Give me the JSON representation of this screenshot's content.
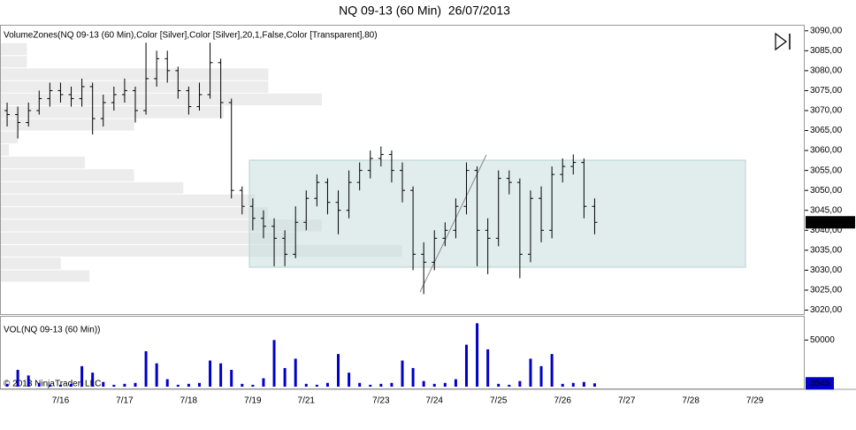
{
  "chart_data": {
    "type": "ohlc",
    "title": "NQ 09-13 (60 Min)  26/07/2013",
    "indicator_label": "VolumeZones(NQ 09-13 (60 Min),Color [Silver],Color [Silver],20,1,False,Color [Transparent],80)",
    "copyright": "© 2013 NinjaTrader, LLC",
    "categories": [
      null,
      null,
      null,
      null,
      null,
      "7/16",
      null,
      null,
      null,
      null,
      null,
      "7/17",
      null,
      null,
      null,
      null,
      null,
      "7/18",
      null,
      null,
      null,
      null,
      null,
      "7/19",
      null,
      null,
      null,
      null,
      "7/21",
      null,
      null,
      null,
      null,
      null,
      null,
      "7/23",
      null,
      null,
      null,
      null,
      "7/24",
      null,
      null,
      null,
      null,
      null,
      "7/25",
      null,
      null,
      null,
      null,
      null,
      "7/26",
      null,
      null,
      null,
      null,
      null,
      "7/27",
      null,
      null,
      null,
      null,
      null,
      "7/28",
      null,
      null,
      null,
      null,
      null,
      "7/29",
      null,
      null,
      null,
      null
    ],
    "open": [
      3070,
      3069,
      3067,
      3070,
      3073,
      3075,
      3074,
      3073,
      3076,
      3068,
      3072,
      3074,
      3075,
      3070,
      3078,
      3083,
      3080,
      3075,
      3071,
      3074,
      3082,
      3072,
      3050,
      3046,
      3043,
      3041,
      3038,
      3034,
      3042,
      3048,
      3052,
      3047,
      3045,
      3052,
      3055,
      3058,
      3059,
      3055,
      3050,
      3034,
      3032,
      3038,
      3040,
      3046,
      3055,
      3040,
      3038,
      3053,
      3052,
      3034,
      3048,
      3040,
      3054,
      3056,
      3057,
      3046,
      null,
      null,
      null,
      null,
      null,
      null,
      null,
      null,
      null,
      null,
      null,
      null,
      null,
      null,
      null,
      null,
      null,
      null,
      null
    ],
    "high": [
      3072,
      3071,
      3072,
      3075,
      3077,
      3077,
      3076,
      3078,
      3077,
      3074,
      3076,
      3078,
      3076,
      3087,
      3085,
      3085,
      3081,
      3076,
      3077,
      3087,
      3083,
      3073,
      3051,
      3048,
      3045,
      3043,
      3040,
      3046,
      3050,
      3054,
      3053,
      3050,
      3055,
      3057,
      3060,
      3061,
      3060,
      3057,
      3051,
      3037,
      3040,
      3042,
      3048,
      3057,
      3056,
      3043,
      3055,
      3055,
      3053,
      3050,
      3051,
      3056,
      3058,
      3059,
      3058,
      3048,
      null,
      null,
      null,
      null,
      null,
      null,
      null,
      null,
      null,
      null,
      null,
      null,
      null,
      null,
      null,
      null,
      null,
      null,
      null
    ],
    "low": [
      3066,
      3063,
      3066,
      3069,
      3071,
      3072,
      3071,
      3071,
      3064,
      3066,
      3070,
      3072,
      3067,
      3069,
      3076,
      3077,
      3073,
      3069,
      3070,
      3073,
      3068,
      3048,
      3044,
      3040,
      3038,
      3031,
      3031,
      3033,
      3040,
      3046,
      3044,
      3039,
      3043,
      3050,
      3053,
      3056,
      3052,
      3047,
      3030,
      3024,
      3030,
      3036,
      3038,
      3044,
      3031,
      3029,
      3036,
      3049,
      3028,
      3032,
      3037,
      3038,
      3052,
      3054,
      3043,
      3039,
      null,
      null,
      null,
      null,
      null,
      null,
      null,
      null,
      null,
      null,
      null,
      null,
      null,
      null,
      null,
      null,
      null,
      null,
      null
    ],
    "close": [
      3069,
      3067,
      3070,
      3073,
      3075,
      3074,
      3073,
      3076,
      3068,
      3072,
      3074,
      3075,
      3070,
      3078,
      3083,
      3080,
      3075,
      3071,
      3074,
      3082,
      3072,
      3050,
      3046,
      3043,
      3041,
      3038,
      3034,
      3042,
      3048,
      3052,
      3047,
      3045,
      3052,
      3055,
      3058,
      3059,
      3055,
      3050,
      3034,
      3032,
      3038,
      3040,
      3046,
      3055,
      3040,
      3038,
      3053,
      3052,
      3034,
      3048,
      3040,
      3054,
      3056,
      3057,
      3046,
      3042,
      null,
      null,
      null,
      null,
      null,
      null,
      null,
      null,
      null,
      null,
      null,
      null,
      null,
      null,
      null,
      null,
      null,
      null,
      null
    ],
    "close_label": "3042,00",
    "color": "#000000",
    "ylim": [
      3019,
      3091.5
    ],
    "yticks": [
      {
        "value": 3020,
        "label": "3020,00"
      },
      {
        "value": 3025,
        "label": "3025,00"
      },
      {
        "value": 3030,
        "label": "3030,00"
      },
      {
        "value": 3035,
        "label": "3035,00"
      },
      {
        "value": 3040,
        "label": "3040,00"
      },
      {
        "value": 3045,
        "label": "3045,00"
      },
      {
        "value": 3050,
        "label": "3050,00"
      },
      {
        "value": 3055,
        "label": "3055,00"
      },
      {
        "value": 3060,
        "label": "3060,00"
      },
      {
        "value": 3065,
        "label": "3065,00"
      },
      {
        "value": 3070,
        "label": "3070,00"
      },
      {
        "value": 3075,
        "label": "3075,00"
      },
      {
        "value": 3080,
        "label": "3080,00"
      },
      {
        "value": 3085,
        "label": "3085,00"
      },
      {
        "value": 3090,
        "label": "3090,00"
      }
    ],
    "volume_zones": {
      "color": "#ececec",
      "bins": [
        3087.1,
        3083.9,
        3080.8,
        3077.6,
        3074.5,
        3071.3,
        3068.1,
        3065.0,
        3061.8,
        3058.7,
        3055.5,
        3052.3,
        3049.2,
        3046.0,
        3042.9,
        3039.7,
        3036.5,
        3033.4,
        3030.2,
        3027.1
      ],
      "values": [
        30,
        30,
        300,
        300,
        360,
        250,
        150,
        20,
        10,
        95,
        150,
        205,
        285,
        300,
        360,
        330,
        450,
        68,
        100
      ]
    },
    "volume": {
      "type": "bar",
      "label": "VOL(NQ 09-13 (60 Min))",
      "color": "#0000c8",
      "values": [
        3000,
        18000,
        12000,
        4000,
        2000,
        2000,
        3000,
        22000,
        15000,
        5000,
        2000,
        3000,
        4000,
        38000,
        25000,
        8000,
        2000,
        3000,
        4000,
        28000,
        25000,
        18000,
        3000,
        2000,
        9000,
        50000,
        20000,
        30000,
        3000,
        2000,
        4000,
        35000,
        15000,
        4000,
        2000,
        3000,
        4000,
        28000,
        20000,
        6000,
        3000,
        4000,
        8000,
        45000,
        68000,
        40000,
        3000,
        2000,
        6000,
        30000,
        22000,
        35000,
        3000,
        4000,
        5000,
        3545,
        null,
        null,
        null,
        null,
        null,
        null,
        null,
        null,
        null,
        null,
        null,
        null,
        null,
        null,
        null,
        null,
        null,
        null,
        null
      ],
      "ylim": [
        0,
        75000
      ],
      "yticks": [
        50000
      ]
    }
  }
}
